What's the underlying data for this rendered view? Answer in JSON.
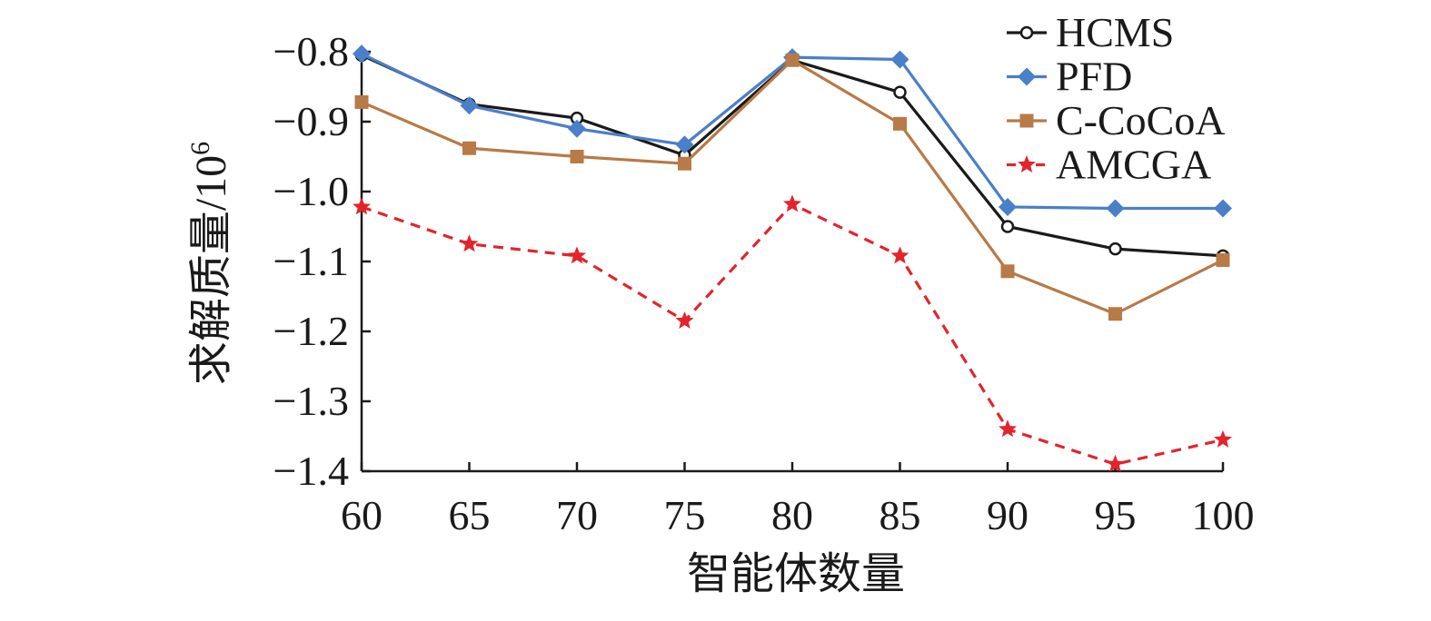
{
  "chart_data": {
    "type": "line",
    "title": "",
    "xlabel": "智能体数量",
    "ylabel": "求解质量/10",
    "ylabel_superscript": "6",
    "x": [
      60,
      65,
      70,
      75,
      80,
      85,
      90,
      95,
      100
    ],
    "x_tick_labels": [
      "60",
      "65",
      "70",
      "75",
      "80",
      "85",
      "90",
      "95",
      "100"
    ],
    "xlim": [
      60,
      100
    ],
    "ylim": [
      -1.4,
      -0.8
    ],
    "y_ticks": [
      -0.8,
      -0.9,
      -1.0,
      -1.1,
      -1.2,
      -1.3,
      -1.4
    ],
    "y_tick_labels": [
      "−0.8",
      "−0.9",
      "−1.0",
      "−1.1",
      "−1.2",
      "−1.3",
      "−1.4"
    ],
    "grid": false,
    "legend_position": "top-right",
    "series": [
      {
        "name": "HCMS",
        "color": "#1a1a1a",
        "marker": "open-circle",
        "line_style": "solid",
        "values": [
          -0.805,
          -0.875,
          -0.895,
          -0.948,
          -0.812,
          -0.858,
          -1.05,
          -1.082,
          -1.092
        ]
      },
      {
        "name": "PFD",
        "color": "#4a7fc9",
        "marker": "diamond",
        "line_style": "solid",
        "values": [
          -0.803,
          -0.877,
          -0.91,
          -0.933,
          -0.808,
          -0.811,
          -1.022,
          -1.024,
          -1.024
        ]
      },
      {
        "name": "C-CoCoA",
        "color": "#b87a47",
        "marker": "square",
        "line_style": "solid",
        "values": [
          -0.872,
          -0.938,
          -0.95,
          -0.96,
          -0.812,
          -0.903,
          -1.114,
          -1.175,
          -1.098
        ]
      },
      {
        "name": "AMCGA",
        "color": "#e3242b",
        "marker": "star",
        "line_style": "dashed",
        "values": [
          -1.022,
          -1.075,
          -1.092,
          -1.185,
          -1.018,
          -1.092,
          -1.34,
          -1.39,
          -1.355
        ]
      }
    ]
  }
}
